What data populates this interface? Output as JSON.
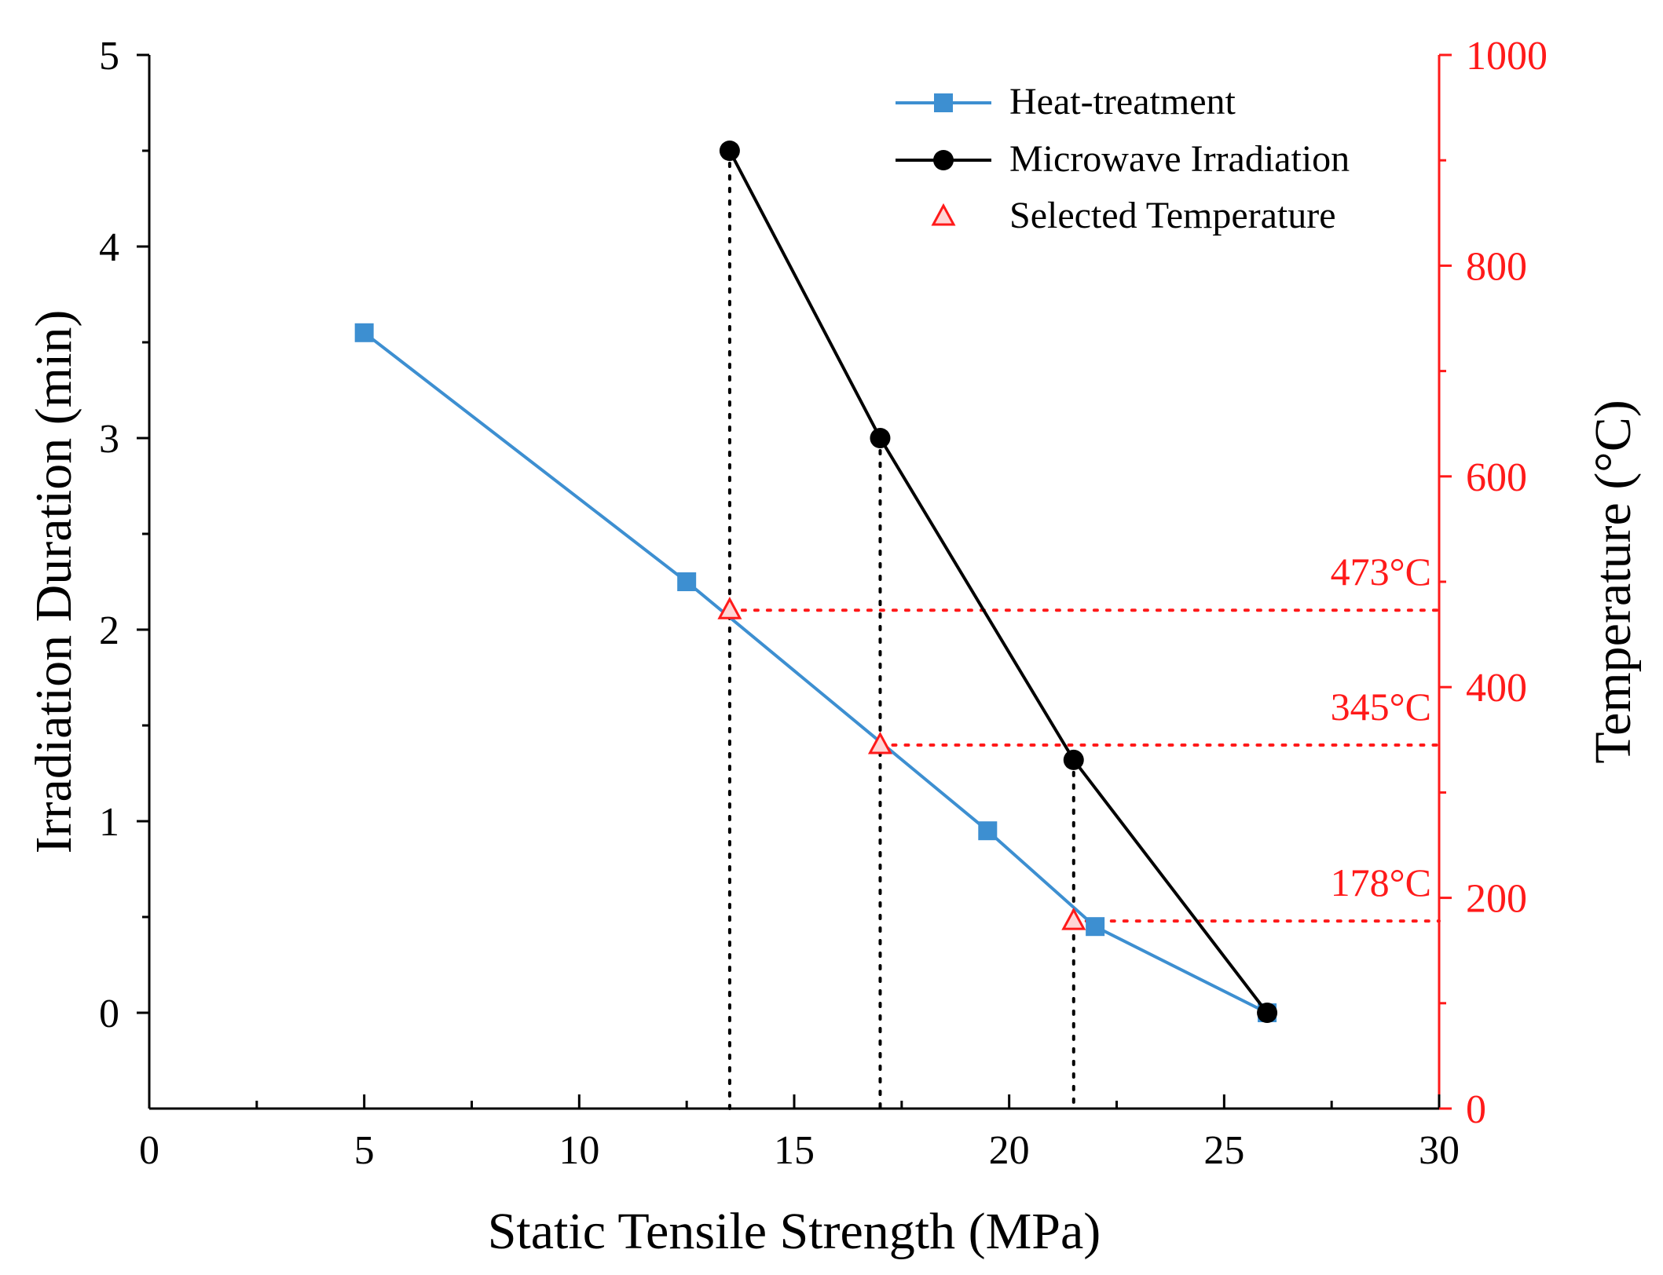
{
  "chart_data": {
    "type": "line",
    "title": "",
    "xlabel": "Static Tensile Strength (MPa)",
    "ylabel": "Irradiation Duration (min)",
    "y2label": "Temperature (°C)",
    "xlim": [
      0,
      30
    ],
    "ylim": [
      -0.5,
      5
    ],
    "y2lim": [
      0,
      1000
    ],
    "x_ticks": [
      0,
      5,
      10,
      15,
      20,
      25,
      30
    ],
    "y_ticks": [
      0,
      1,
      2,
      3,
      4,
      5
    ],
    "y2_ticks": [
      0,
      200,
      400,
      600,
      800,
      1000
    ],
    "grid": false,
    "legend_position": "top-right",
    "colors": {
      "heat": "#3d8fd1",
      "micro": "#000000",
      "selected": "#ff1a1a",
      "axis_right": "#ff1a1a",
      "axis": "#000000"
    },
    "series": [
      {
        "name": "Heat-treatment",
        "axis": "left",
        "marker": "square",
        "x": [
          5,
          12.5,
          19.5,
          22,
          26
        ],
        "y": [
          3.55,
          2.25,
          0.95,
          0.45,
          0
        ]
      },
      {
        "name": "Microwave Irradiation",
        "axis": "left",
        "marker": "circle",
        "x": [
          13.5,
          17,
          21.5,
          26
        ],
        "y": [
          4.5,
          3.0,
          1.32,
          0
        ]
      },
      {
        "name": "Selected Temperature",
        "axis": "right",
        "marker": "triangle",
        "x": [
          13.5,
          17,
          21.5
        ],
        "y": [
          473,
          345,
          178
        ],
        "labels": [
          "473°C",
          "345°C",
          "178°C"
        ]
      }
    ],
    "vertical_guides": [
      13.5,
      17,
      21.5
    ]
  }
}
